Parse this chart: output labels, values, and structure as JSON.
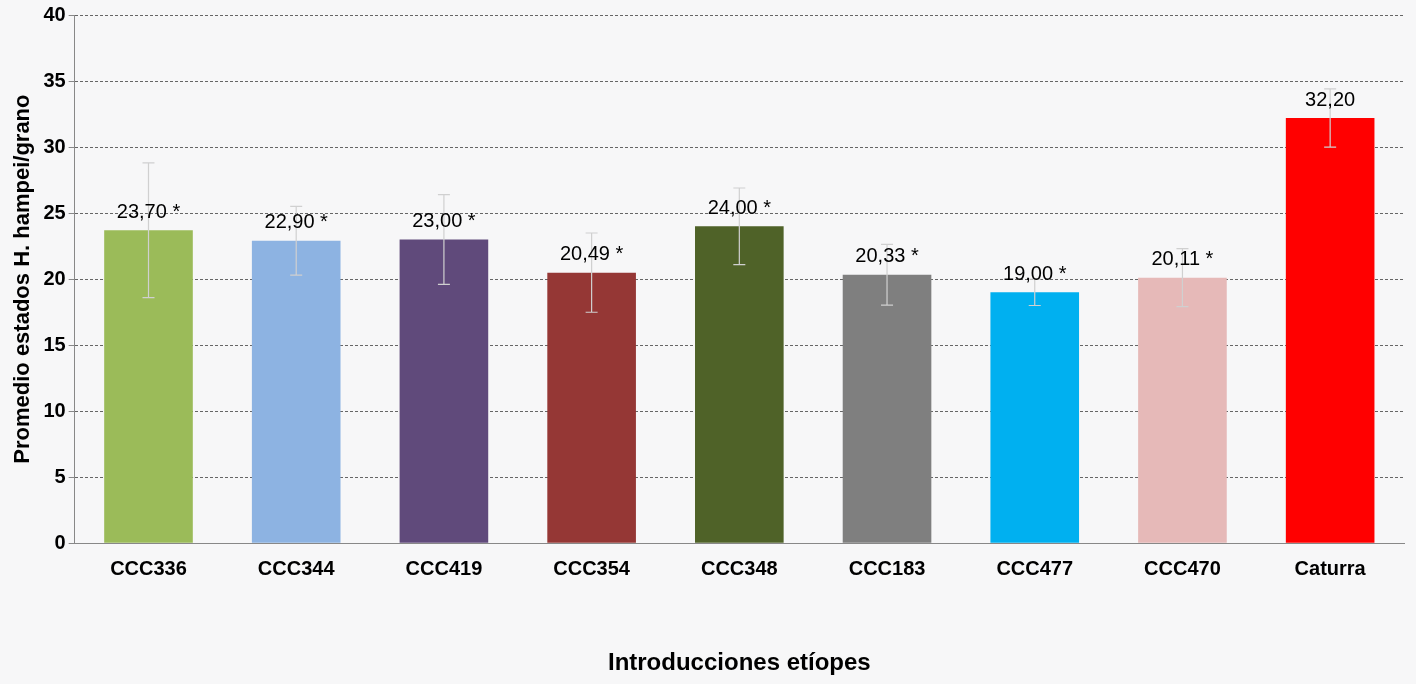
{
  "chart_data": {
    "type": "bar",
    "xlabel": "Introducciones etíopes",
    "ylabel": "Promedio estados H. hampei/grano",
    "categories": [
      "CCC336",
      "CCC344",
      "CCC419",
      "CCC354",
      "CCC348",
      "CCC183",
      "CCC477",
      "CCC470",
      "Caturra"
    ],
    "values": [
      23.7,
      22.9,
      23.0,
      20.49,
      24.0,
      20.33,
      19.0,
      20.11,
      32.2
    ],
    "colors": [
      "#9bbb59",
      "#8db3e2",
      "#604a7b",
      "#953735",
      "#4f6228",
      "#7f7f7f",
      "#00b0f0",
      "#e6b9b8",
      "#ff0000"
    ],
    "errors": [
      5.1,
      2.6,
      3.4,
      3.0,
      2.9,
      2.3,
      1.0,
      2.2,
      2.2
    ],
    "value_labels": [
      "23,70 *",
      "22,90 *",
      "23,00 *",
      "20,49 *",
      "24,00 *",
      "20,33 *",
      "19,00 *",
      "20,11 *",
      "32,20"
    ],
    "ylim": [
      0,
      40
    ],
    "yticks": [
      0,
      5,
      10,
      15,
      20,
      25,
      30,
      35,
      40
    ],
    "grid": "y",
    "legend": false
  }
}
